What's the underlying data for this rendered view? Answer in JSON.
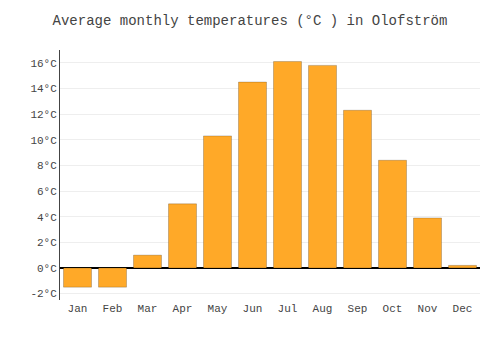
{
  "chart_data": {
    "type": "bar",
    "title": "Average monthly temperatures (°C ) in Olofström",
    "categories": [
      "Jan",
      "Feb",
      "Mar",
      "Apr",
      "May",
      "Jun",
      "Jul",
      "Aug",
      "Sep",
      "Oct",
      "Nov",
      "Dec"
    ],
    "values": [
      -1.5,
      -1.5,
      1.0,
      5.0,
      10.3,
      14.5,
      16.1,
      15.8,
      12.3,
      8.4,
      3.9,
      0.2
    ],
    "color": "#FFA928",
    "ylim": [
      -2.5,
      17.0
    ],
    "yticks": [
      {
        "value": -2,
        "label": "-2°C"
      },
      {
        "value": 0,
        "label": "0°C"
      },
      {
        "value": 2,
        "label": "2°C"
      },
      {
        "value": 4,
        "label": "4°C"
      },
      {
        "value": 6,
        "label": "6°C"
      },
      {
        "value": 8,
        "label": "8°C"
      },
      {
        "value": 10,
        "label": "10°C"
      },
      {
        "value": 12,
        "label": "12°C"
      },
      {
        "value": 14,
        "label": "14°C"
      },
      {
        "value": 16,
        "label": "16°C"
      }
    ],
    "grid": true
  }
}
